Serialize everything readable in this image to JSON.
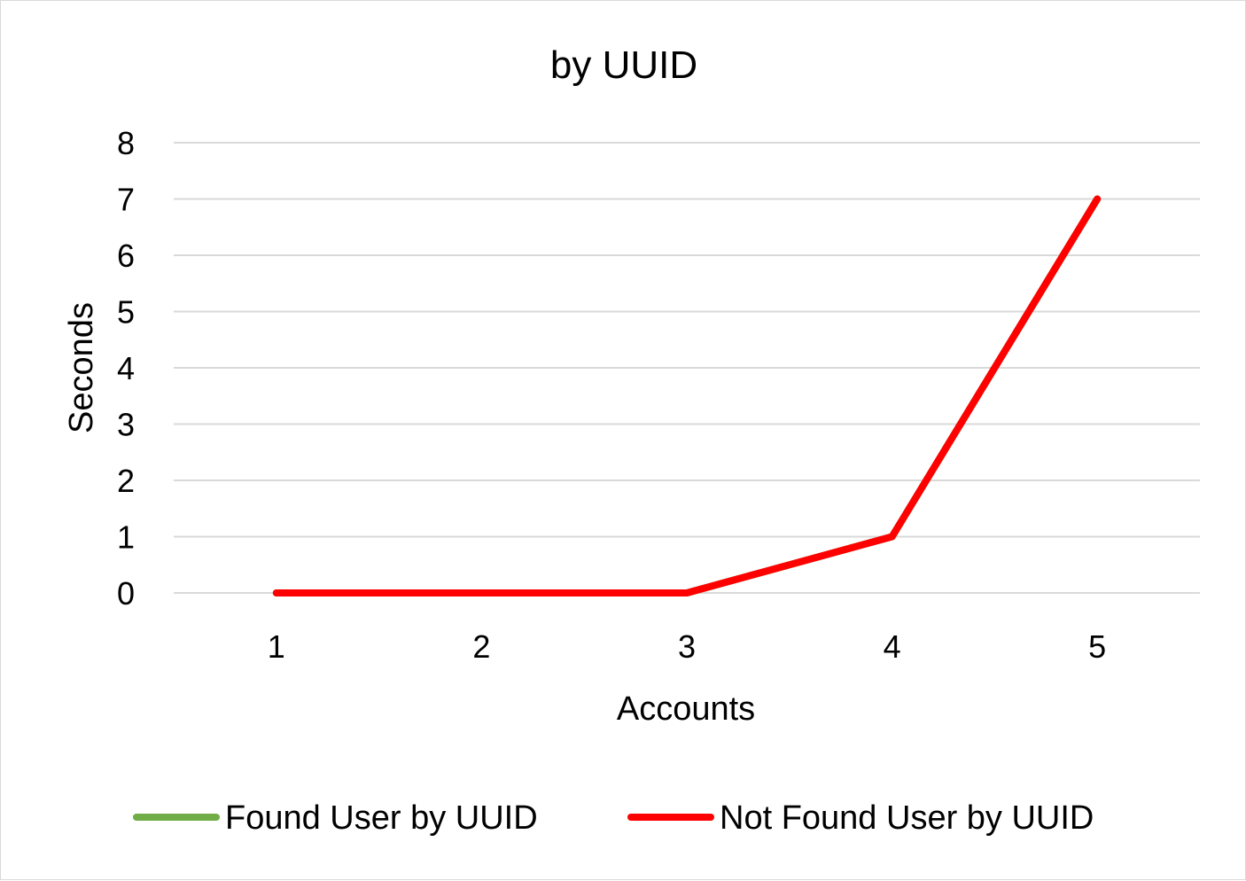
{
  "chart_data": {
    "type": "line",
    "title": "by UUID",
    "xlabel": "Accounts",
    "ylabel": "Seconds",
    "categories": [
      "1",
      "2",
      "3",
      "4",
      "5"
    ],
    "yticks": [
      "0",
      "1",
      "2",
      "3",
      "4",
      "5",
      "6",
      "7",
      "8"
    ],
    "ylim": [
      0,
      8
    ],
    "grid": true,
    "legend_position": "bottom",
    "series": [
      {
        "name": "Found User by UUID",
        "values": [
          0,
          0,
          0,
          1,
          7
        ],
        "color": "#70ad47"
      },
      {
        "name": "Not Found User by UUID",
        "values": [
          0,
          0,
          0,
          1,
          7
        ],
        "color": "#ff0000"
      }
    ]
  }
}
